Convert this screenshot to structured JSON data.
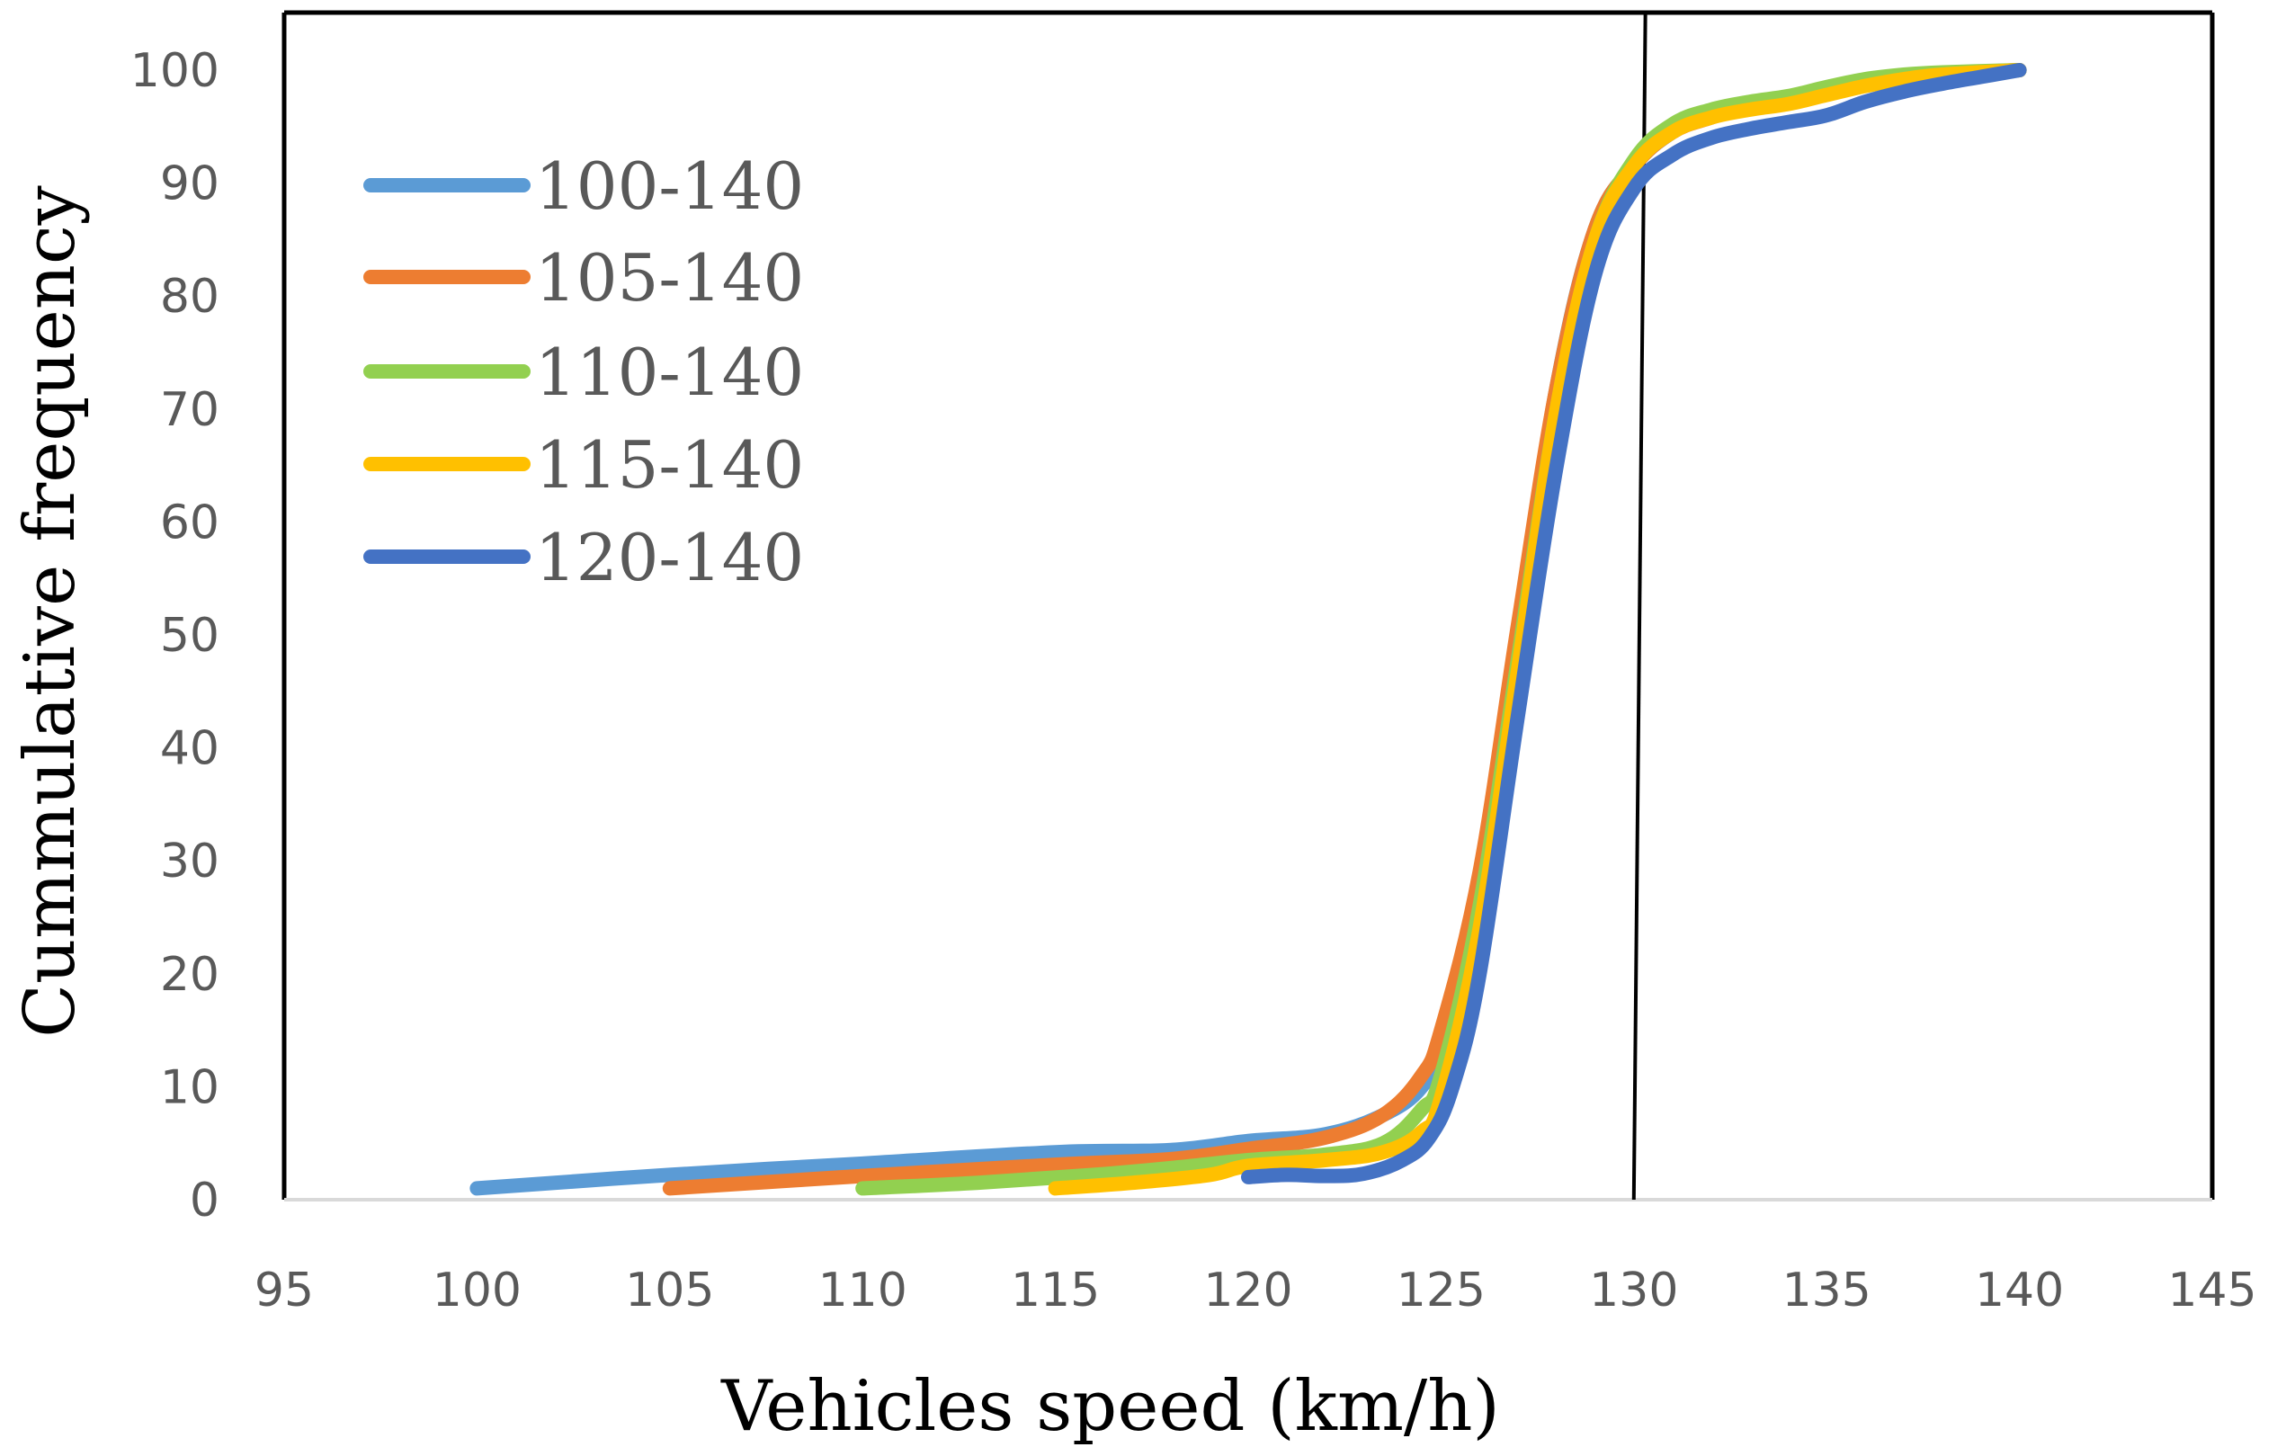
{
  "chart_data": {
    "type": "line",
    "title": "",
    "xlabel": "Vehicles speed (km/h)",
    "ylabel": "Cummulative frequency",
    "xlim": [
      95,
      145
    ],
    "ylim": [
      0,
      100
    ],
    "x_ticks": [
      "95",
      "100",
      "105",
      "110",
      "115",
      "120",
      "125",
      "130",
      "135",
      "140",
      "145"
    ],
    "y_ticks": [
      "0",
      "10",
      "20",
      "30",
      "40",
      "50",
      "60",
      "70",
      "80",
      "90",
      "100"
    ],
    "grid": false,
    "legend_position": "top-left",
    "reference_line": {
      "x_bottom": 130.0,
      "x_top": 130.3
    },
    "series": [
      {
        "name": "100-140",
        "color": "#5B9BD5",
        "points": [
          [
            100,
            1
          ],
          [
            105,
            2.2
          ],
          [
            110,
            3.2
          ],
          [
            115,
            4.2
          ],
          [
            118,
            4.4
          ],
          [
            120,
            5.2
          ],
          [
            122,
            5.8
          ],
          [
            123.5,
            7.5
          ],
          [
            124.5,
            10
          ],
          [
            125,
            14
          ],
          [
            126,
            28
          ],
          [
            127,
            50
          ],
          [
            128,
            72
          ],
          [
            129,
            86
          ],
          [
            130,
            91.5
          ],
          [
            131,
            94.5
          ],
          [
            132,
            96
          ],
          [
            133,
            97
          ],
          [
            134,
            97.5
          ],
          [
            135,
            98.3
          ],
          [
            136,
            99
          ],
          [
            137,
            99.4
          ],
          [
            138,
            99.7
          ],
          [
            140,
            100
          ]
        ]
      },
      {
        "name": "105-140",
        "color": "#ED7D31",
        "points": [
          [
            105,
            1
          ],
          [
            110,
            2.1
          ],
          [
            115,
            3.1
          ],
          [
            118,
            3.6
          ],
          [
            120,
            4.5
          ],
          [
            122,
            5.5
          ],
          [
            123.5,
            7.5
          ],
          [
            124.5,
            11
          ],
          [
            125,
            15
          ],
          [
            126,
            29
          ],
          [
            127,
            51
          ],
          [
            128,
            72
          ],
          [
            129,
            86
          ],
          [
            130,
            91.5
          ],
          [
            131,
            94.5
          ],
          [
            132,
            95.8
          ],
          [
            133,
            96.8
          ],
          [
            134,
            97.3
          ],
          [
            135,
            98
          ],
          [
            136,
            98.8
          ],
          [
            137,
            99.3
          ],
          [
            138,
            99.7
          ],
          [
            140,
            100
          ]
        ]
      },
      {
        "name": "110-140",
        "color": "#92D050",
        "points": [
          [
            110,
            1
          ],
          [
            113,
            1.5
          ],
          [
            116,
            2.2
          ],
          [
            118,
            2.8
          ],
          [
            120,
            3.5
          ],
          [
            122,
            4
          ],
          [
            123.5,
            5
          ],
          [
            124.5,
            8
          ],
          [
            125,
            11
          ],
          [
            126,
            26
          ],
          [
            127,
            48
          ],
          [
            128,
            70
          ],
          [
            129,
            85
          ],
          [
            130,
            92
          ],
          [
            131,
            95.2
          ],
          [
            132,
            96.5
          ],
          [
            133,
            97.2
          ],
          [
            134,
            97.7
          ],
          [
            135,
            98.5
          ],
          [
            136,
            99.2
          ],
          [
            137,
            99.6
          ],
          [
            138,
            99.8
          ],
          [
            140,
            100
          ]
        ]
      },
      {
        "name": "115-140",
        "color": "#FFC000",
        "points": [
          [
            115,
            1
          ],
          [
            117,
            1.5
          ],
          [
            119,
            2.2
          ],
          [
            120,
            3
          ],
          [
            122,
            3.5
          ],
          [
            123.5,
            4.2
          ],
          [
            124.5,
            6
          ],
          [
            125,
            9
          ],
          [
            126,
            24
          ],
          [
            127,
            47
          ],
          [
            128,
            70
          ],
          [
            129,
            85
          ],
          [
            130,
            91.5
          ],
          [
            131,
            94.5
          ],
          [
            132,
            95.8
          ],
          [
            133,
            96.5
          ],
          [
            134,
            97
          ],
          [
            135,
            97.8
          ],
          [
            136,
            98.6
          ],
          [
            137,
            99.2
          ],
          [
            138,
            99.6
          ],
          [
            140,
            100
          ]
        ]
      },
      {
        "name": "120-140",
        "color": "#4472C4",
        "points": [
          [
            120,
            2
          ],
          [
            121,
            2.2
          ],
          [
            122,
            2.1
          ],
          [
            123,
            2.3
          ],
          [
            124,
            3.5
          ],
          [
            124.7,
            5.5
          ],
          [
            125.3,
            10
          ],
          [
            126,
            20
          ],
          [
            127,
            43
          ],
          [
            128,
            65
          ],
          [
            129,
            82
          ],
          [
            130,
            89.5
          ],
          [
            131,
            92.5
          ],
          [
            132,
            94
          ],
          [
            133,
            94.8
          ],
          [
            134,
            95.4
          ],
          [
            135,
            96
          ],
          [
            136,
            97.2
          ],
          [
            137,
            98.1
          ],
          [
            138,
            98.8
          ],
          [
            139,
            99.4
          ],
          [
            140,
            100
          ]
        ]
      }
    ]
  }
}
